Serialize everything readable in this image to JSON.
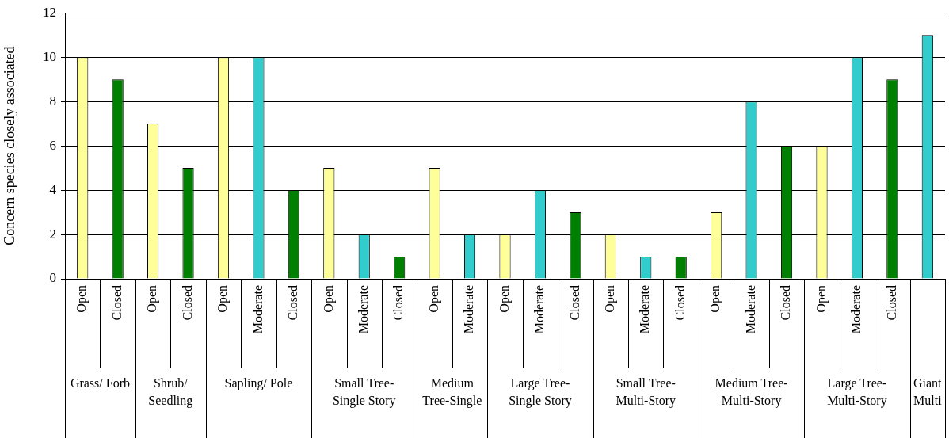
{
  "chart_data": {
    "type": "bar",
    "ylabel": "Concern species closely associated",
    "categories": [
      "Open",
      "Closed",
      "Open",
      "Closed",
      "Open",
      "Moderate",
      "Closed",
      "Open",
      "Moderate",
      "Closed",
      "Open",
      "Moderate",
      "Open",
      "Moderate",
      "Closed",
      "Open",
      "Moderate",
      "Closed",
      "Open",
      "Moderate",
      "Closed",
      "Open",
      "Moderate",
      "Closed",
      null
    ],
    "values": [
      10,
      9,
      7,
      5,
      10,
      10,
      4,
      5,
      2,
      1,
      5,
      2,
      2,
      4,
      3,
      2,
      1,
      1,
      3,
      8,
      6,
      6,
      10,
      9,
      11
    ],
    "colors": [
      "#ffff99",
      "#008000",
      "#ffff99",
      "#008000",
      "#ffff99",
      "#33cccc",
      "#008000",
      "#ffff99",
      "#33cccc",
      "#008000",
      "#ffff99",
      "#33cccc",
      "#ffff99",
      "#33cccc",
      "#008000",
      "#ffff99",
      "#33cccc",
      "#008000",
      "#ffff99",
      "#33cccc",
      "#008000",
      "#ffff99",
      "#33cccc",
      "#008000",
      "#33cccc"
    ],
    "annotations": [
      "Grass/ Forb",
      "Shrub/ Seedling",
      "Sapling/ Pole",
      "Small Tree-Single Story",
      "Medium Tree-Single",
      "Large Tree-Single Story",
      "Small Tree-Multi-Story",
      "Medium Tree-Multi-Story",
      "Large Tree-Multi-Story",
      "Giant Multi"
    ],
    "ylim": [
      0,
      12
    ],
    "yticks": [
      0,
      2,
      4,
      6,
      8,
      10,
      12
    ],
    "grid": "y"
  }
}
